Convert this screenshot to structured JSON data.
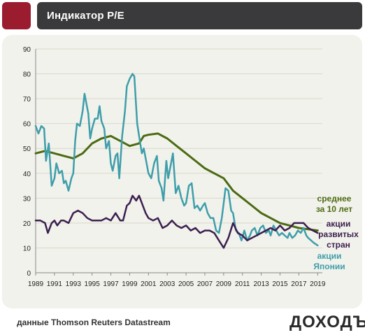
{
  "header": {
    "title": "Индикатор P/E"
  },
  "footer": {
    "source": "данные Thomson Reuters Datastream",
    "logo": "ДОХОДЪ"
  },
  "colors": {
    "brand_square": "#9b1c2e",
    "header_bar": "#3a3a3c",
    "panel_bg": "#f2f2ec"
  },
  "chart_data": {
    "type": "line",
    "title": "",
    "xlabel": "",
    "ylabel": "",
    "xlim": [
      1989,
      2019.5
    ],
    "ylim": [
      0,
      90
    ],
    "y_ticks": [
      0,
      10,
      20,
      30,
      40,
      50,
      60,
      70,
      80,
      90
    ],
    "x_ticks": [
      1989,
      1991,
      1993,
      1995,
      1997,
      1999,
      2001,
      2003,
      2005,
      2007,
      2009,
      2011,
      2013,
      2015,
      2017,
      2019
    ],
    "grid": true,
    "series": [
      {
        "key": "avg10",
        "label_lines": [
          "среднее",
          "за 10 лет"
        ],
        "color": "#4b6b12",
        "width": 3,
        "points": [
          [
            1989,
            48
          ],
          [
            1990,
            49
          ],
          [
            1991,
            48
          ],
          [
            1992,
            47
          ],
          [
            1993,
            46
          ],
          [
            1994,
            48
          ],
          [
            1995,
            52
          ],
          [
            1996,
            54
          ],
          [
            1997,
            55
          ],
          [
            1998,
            53
          ],
          [
            1999,
            51
          ],
          [
            2000,
            52
          ],
          [
            2000.5,
            55
          ],
          [
            2001,
            55.5
          ],
          [
            2002,
            56
          ],
          [
            2003,
            54
          ],
          [
            2004,
            51
          ],
          [
            2005,
            48
          ],
          [
            2006,
            45
          ],
          [
            2007,
            42
          ],
          [
            2008,
            40
          ],
          [
            2009,
            38
          ],
          [
            2010,
            33
          ],
          [
            2011,
            30
          ],
          [
            2012,
            27
          ],
          [
            2013,
            24
          ],
          [
            2014,
            22
          ],
          [
            2015,
            20
          ],
          [
            2016,
            19
          ],
          [
            2017,
            18
          ],
          [
            2018,
            17.5
          ],
          [
            2019,
            17
          ]
        ]
      },
      {
        "key": "developed",
        "label_lines": [
          "акции",
          "развитых",
          "стран"
        ],
        "color": "#3b1f4f",
        "width": 2.5,
        "points": [
          [
            1989,
            21
          ],
          [
            1989.5,
            21
          ],
          [
            1990,
            20
          ],
          [
            1990.3,
            16
          ],
          [
            1990.7,
            20
          ],
          [
            1991,
            21
          ],
          [
            1991.3,
            19
          ],
          [
            1991.7,
            21
          ],
          [
            1992,
            21
          ],
          [
            1992.5,
            20
          ],
          [
            1993,
            24
          ],
          [
            1993.5,
            25
          ],
          [
            1994,
            24
          ],
          [
            1994.5,
            22
          ],
          [
            1995,
            21
          ],
          [
            1995.5,
            21
          ],
          [
            1996,
            21
          ],
          [
            1996.5,
            22
          ],
          [
            1997,
            21
          ],
          [
            1997.5,
            24
          ],
          [
            1998,
            21
          ],
          [
            1998.3,
            21
          ],
          [
            1998.7,
            27
          ],
          [
            1999,
            28
          ],
          [
            1999.3,
            31
          ],
          [
            1999.7,
            29
          ],
          [
            2000,
            31
          ],
          [
            2000.3,
            28
          ],
          [
            2000.7,
            24
          ],
          [
            2001,
            22
          ],
          [
            2001.5,
            21
          ],
          [
            2002,
            22
          ],
          [
            2002.5,
            18
          ],
          [
            2003,
            19
          ],
          [
            2003.5,
            21
          ],
          [
            2004,
            19
          ],
          [
            2004.5,
            18
          ],
          [
            2005,
            19
          ],
          [
            2005.5,
            17
          ],
          [
            2006,
            18
          ],
          [
            2006.5,
            16
          ],
          [
            2007,
            17
          ],
          [
            2007.5,
            17
          ],
          [
            2008,
            16
          ],
          [
            2008.5,
            13
          ],
          [
            2009,
            10
          ],
          [
            2009.5,
            14
          ],
          [
            2010,
            20
          ],
          [
            2010.5,
            16
          ],
          [
            2011,
            15
          ],
          [
            2011.5,
            13
          ],
          [
            2012,
            14
          ],
          [
            2012.5,
            15
          ],
          [
            2013,
            16
          ],
          [
            2013.5,
            17
          ],
          [
            2014,
            18
          ],
          [
            2014.5,
            17
          ],
          [
            2015,
            19
          ],
          [
            2015.5,
            17
          ],
          [
            2016,
            18
          ],
          [
            2016.5,
            20
          ],
          [
            2017,
            20
          ],
          [
            2017.5,
            20
          ],
          [
            2018,
            18
          ],
          [
            2018.5,
            17
          ],
          [
            2019,
            16
          ]
        ]
      },
      {
        "key": "japan",
        "label_lines": [
          "акции",
          "Японии"
        ],
        "color": "#3e9eaa",
        "width": 2.5,
        "points": [
          [
            1989,
            59
          ],
          [
            1989.3,
            56
          ],
          [
            1989.6,
            59
          ],
          [
            1989.9,
            58
          ],
          [
            1990.1,
            45
          ],
          [
            1990.4,
            52
          ],
          [
            1990.7,
            35
          ],
          [
            1991,
            38
          ],
          [
            1991.2,
            44
          ],
          [
            1991.5,
            40
          ],
          [
            1991.8,
            41
          ],
          [
            1992,
            36
          ],
          [
            1992.2,
            37
          ],
          [
            1992.5,
            33
          ],
          [
            1992.8,
            38
          ],
          [
            1993,
            40
          ],
          [
            1993.2,
            53
          ],
          [
            1993.4,
            60
          ],
          [
            1993.7,
            59
          ],
          [
            1994,
            65
          ],
          [
            1994.2,
            72
          ],
          [
            1994.4,
            68
          ],
          [
            1994.6,
            64
          ],
          [
            1994.8,
            54
          ],
          [
            1995,
            58
          ],
          [
            1995.3,
            62
          ],
          [
            1995.6,
            62
          ],
          [
            1995.8,
            67
          ],
          [
            1996,
            61
          ],
          [
            1996.3,
            58
          ],
          [
            1996.5,
            50
          ],
          [
            1996.8,
            53
          ],
          [
            1997,
            44
          ],
          [
            1997.2,
            41
          ],
          [
            1997.5,
            47
          ],
          [
            1997.7,
            48
          ],
          [
            1997.9,
            38
          ],
          [
            1998.2,
            55
          ],
          [
            1998.5,
            65
          ],
          [
            1998.7,
            75
          ],
          [
            1999,
            78
          ],
          [
            1999.3,
            80
          ],
          [
            1999.5,
            79
          ],
          [
            1999.8,
            60
          ],
          [
            2000,
            55
          ],
          [
            2000.3,
            48
          ],
          [
            2000.5,
            50
          ],
          [
            2000.7,
            46
          ],
          [
            2001,
            40
          ],
          [
            2001.3,
            38
          ],
          [
            2001.6,
            44
          ],
          [
            2001.9,
            47
          ],
          [
            2002.1,
            37
          ],
          [
            2002.4,
            34
          ],
          [
            2002.6,
            29
          ],
          [
            2002.9,
            45
          ],
          [
            2003.1,
            38
          ],
          [
            2003.4,
            44
          ],
          [
            2003.6,
            48
          ],
          [
            2003.9,
            32
          ],
          [
            2004.2,
            35
          ],
          [
            2004.5,
            30
          ],
          [
            2004.8,
            27
          ],
          [
            2005,
            28
          ],
          [
            2005.3,
            35
          ],
          [
            2005.6,
            36
          ],
          [
            2005.9,
            26
          ],
          [
            2006.2,
            27
          ],
          [
            2006.5,
            25
          ],
          [
            2006.8,
            27
          ],
          [
            2007,
            28
          ],
          [
            2007.3,
            24
          ],
          [
            2007.6,
            22
          ],
          [
            2007.9,
            22
          ],
          [
            2008.2,
            17
          ],
          [
            2008.5,
            16
          ],
          [
            2008.8,
            22
          ],
          [
            2009,
            28
          ],
          [
            2009.2,
            34
          ],
          [
            2009.5,
            33
          ],
          [
            2009.8,
            25
          ],
          [
            2010,
            24
          ],
          [
            2010.3,
            17
          ],
          [
            2010.6,
            16
          ],
          [
            2010.9,
            13
          ],
          [
            2011.2,
            17
          ],
          [
            2011.5,
            13
          ],
          [
            2011.8,
            15
          ],
          [
            2012,
            17
          ],
          [
            2012.3,
            18
          ],
          [
            2012.6,
            15
          ],
          [
            2012.9,
            18
          ],
          [
            2013.2,
            19
          ],
          [
            2013.5,
            16
          ],
          [
            2013.8,
            17
          ],
          [
            2014,
            15
          ],
          [
            2014.3,
            19
          ],
          [
            2014.6,
            17
          ],
          [
            2014.9,
            15
          ],
          [
            2015.2,
            16
          ],
          [
            2015.5,
            15
          ],
          [
            2015.8,
            14
          ],
          [
            2016,
            16
          ],
          [
            2016.3,
            14
          ],
          [
            2016.6,
            15
          ],
          [
            2016.9,
            17
          ],
          [
            2017.2,
            16
          ],
          [
            2017.5,
            18
          ],
          [
            2017.8,
            15
          ],
          [
            2018,
            14
          ],
          [
            2018.3,
            13
          ],
          [
            2018.6,
            12
          ],
          [
            2019,
            11
          ]
        ]
      }
    ]
  }
}
